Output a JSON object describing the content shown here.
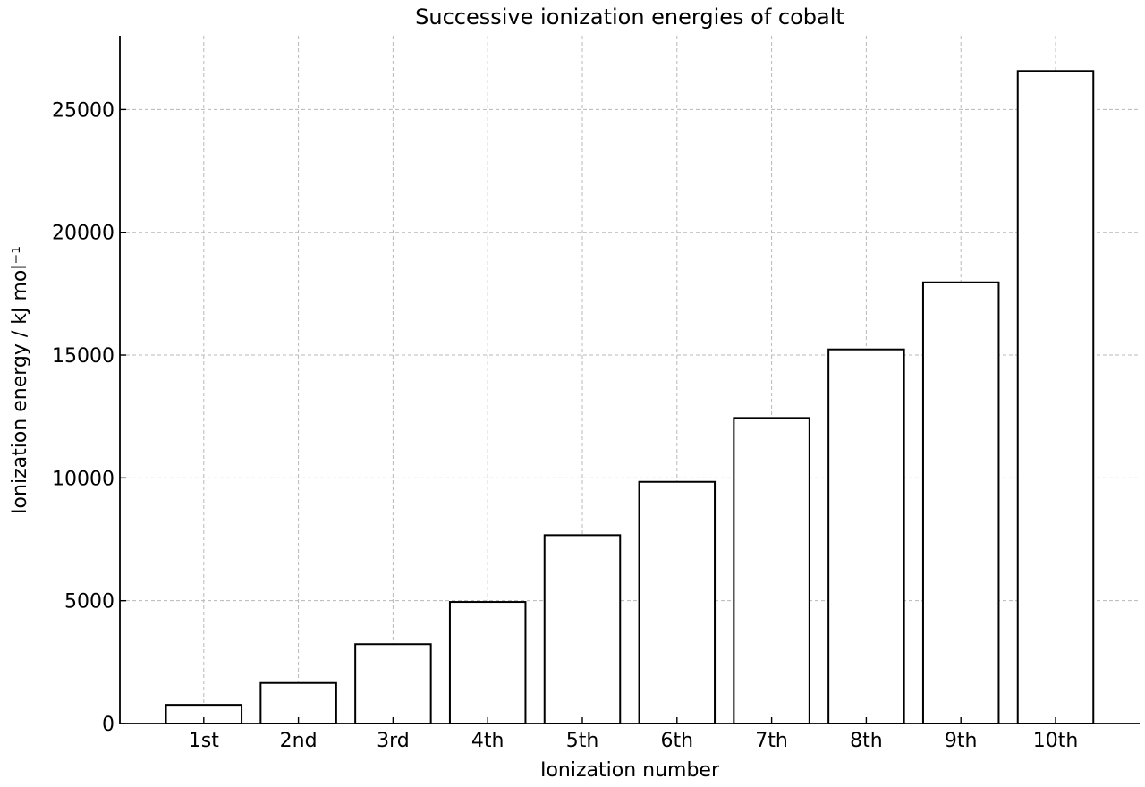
{
  "chart_data": {
    "type": "bar",
    "title": "Successive ionization energies of cobalt",
    "xlabel": "Ionization number",
    "ylabel": "Ionization energy / kJ mol⁻¹",
    "categories": [
      "1st",
      "2nd",
      "3rd",
      "4th",
      "5th",
      "6th",
      "7th",
      "8th",
      "9th",
      "10th"
    ],
    "values": [
      760,
      1648,
      3232,
      4950,
      7670,
      9840,
      12440,
      15230,
      17959,
      26570
    ],
    "ylim": [
      0,
      28000
    ],
    "yticks": [
      0,
      5000,
      10000,
      15000,
      20000,
      25000
    ],
    "grid": true,
    "colors": {
      "bar_fill": "#ffffff",
      "bar_edge": "#000000",
      "grid": "#b8b8b8"
    }
  }
}
